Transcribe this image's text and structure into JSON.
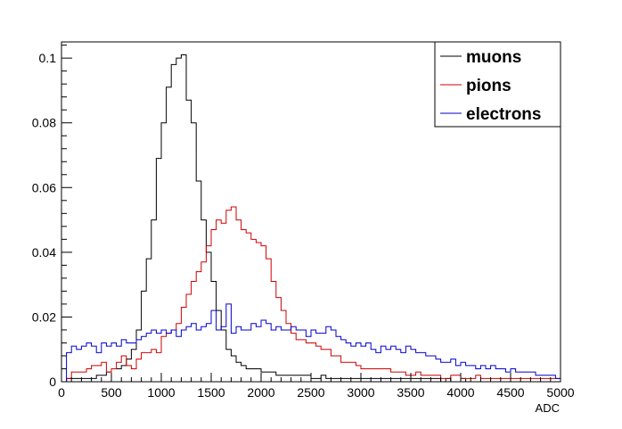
{
  "chart_data": {
    "type": "line",
    "title": "",
    "xlabel": "ADC",
    "ylabel": "",
    "xlim": [
      0,
      5000
    ],
    "ylim": [
      0,
      0.105
    ],
    "grid": false,
    "legend_placement": "top-right",
    "x_ticks": [
      "0",
      "500",
      "1000",
      "1500",
      "2000",
      "2500",
      "3000",
      "3500",
      "4000",
      "4500",
      "5000"
    ],
    "y_ticks": [
      "0",
      "0.02",
      "0.04",
      "0.06",
      "0.08",
      "0.1"
    ],
    "bin_width": 50,
    "x_bin_start": 0,
    "series": [
      {
        "name": "muons",
        "color": "#000000",
        "values": [
          0.0,
          0.001,
          0.001,
          0.001,
          0.001,
          0.001,
          0.001,
          0.002,
          0.002,
          0.003,
          0.004,
          0.004,
          0.005,
          0.007,
          0.01,
          0.016,
          0.028,
          0.038,
          0.05,
          0.069,
          0.08,
          0.091,
          0.098,
          0.1,
          0.101,
          0.087,
          0.08,
          0.062,
          0.05,
          0.04,
          0.031,
          0.022,
          0.016,
          0.01,
          0.008,
          0.006,
          0.005,
          0.004,
          0.004,
          0.004,
          0.003,
          0.003,
          0.003,
          0.002,
          0.002,
          0.002,
          0.002,
          0.002,
          0.002,
          0.002,
          0.001,
          0.001,
          0.002,
          0.001,
          0.001,
          0.001,
          0.001,
          0.001,
          0.001,
          0.001,
          0.001,
          0.001,
          0.001,
          0.001,
          0.001,
          0.001,
          0.001,
          0.001,
          0.001,
          0.001,
          0.001,
          0.001,
          0.001,
          0.001,
          0.001,
          0.001,
          0.0,
          0.001,
          0.0,
          0.0,
          0.001,
          0.0,
          0.0,
          0.0,
          0.0,
          0.0,
          0.0,
          0.0,
          0.0,
          0.0,
          0.0,
          0.0,
          0.0,
          0.0,
          0.0,
          0.0,
          0.0,
          0.0,
          0.0,
          0.0
        ]
      },
      {
        "name": "pions",
        "color": "#cc0000",
        "values": [
          0.0,
          0.001,
          0.003,
          0.003,
          0.003,
          0.004,
          0.005,
          0.005,
          0.006,
          0.003,
          0.004,
          0.006,
          0.008,
          0.005,
          0.004,
          0.007,
          0.009,
          0.009,
          0.01,
          0.009,
          0.014,
          0.015,
          0.016,
          0.018,
          0.023,
          0.027,
          0.031,
          0.034,
          0.037,
          0.042,
          0.047,
          0.05,
          0.049,
          0.053,
          0.054,
          0.05,
          0.047,
          0.046,
          0.044,
          0.043,
          0.042,
          0.038,
          0.031,
          0.026,
          0.022,
          0.018,
          0.015,
          0.013,
          0.013,
          0.012,
          0.012,
          0.011,
          0.01,
          0.01,
          0.008,
          0.008,
          0.006,
          0.006,
          0.006,
          0.005,
          0.004,
          0.004,
          0.004,
          0.004,
          0.004,
          0.004,
          0.003,
          0.003,
          0.003,
          0.002,
          0.002,
          0.003,
          0.002,
          0.002,
          0.002,
          0.002,
          0.001,
          0.001,
          0.002,
          0.002,
          0.001,
          0.001,
          0.001,
          0.002,
          0.001,
          0.001,
          0.001,
          0.001,
          0.001,
          0.001,
          0.001,
          0.001,
          0.001,
          0.001,
          0.001,
          0.001,
          0.001,
          0.001,
          0.001,
          0.001
        ]
      },
      {
        "name": "electrons",
        "color": "#0000cc",
        "values": [
          0.0,
          0.009,
          0.011,
          0.01,
          0.011,
          0.012,
          0.011,
          0.009,
          0.012,
          0.011,
          0.012,
          0.011,
          0.013,
          0.012,
          0.012,
          0.013,
          0.014,
          0.015,
          0.016,
          0.015,
          0.016,
          0.015,
          0.016,
          0.014,
          0.016,
          0.017,
          0.018,
          0.016,
          0.017,
          0.018,
          0.022,
          0.016,
          0.017,
          0.024,
          0.015,
          0.017,
          0.016,
          0.016,
          0.018,
          0.017,
          0.019,
          0.018,
          0.016,
          0.017,
          0.016,
          0.016,
          0.017,
          0.016,
          0.016,
          0.014,
          0.016,
          0.015,
          0.015,
          0.017,
          0.016,
          0.014,
          0.013,
          0.012,
          0.011,
          0.012,
          0.011,
          0.012,
          0.01,
          0.009,
          0.011,
          0.01,
          0.011,
          0.01,
          0.009,
          0.011,
          0.01,
          0.009,
          0.009,
          0.008,
          0.008,
          0.007,
          0.006,
          0.006,
          0.007,
          0.005,
          0.006,
          0.005,
          0.005,
          0.004,
          0.005,
          0.004,
          0.005,
          0.004,
          0.004,
          0.003,
          0.004,
          0.003,
          0.003,
          0.003,
          0.003,
          0.002,
          0.002,
          0.002,
          0.002,
          0.001
        ]
      }
    ]
  }
}
